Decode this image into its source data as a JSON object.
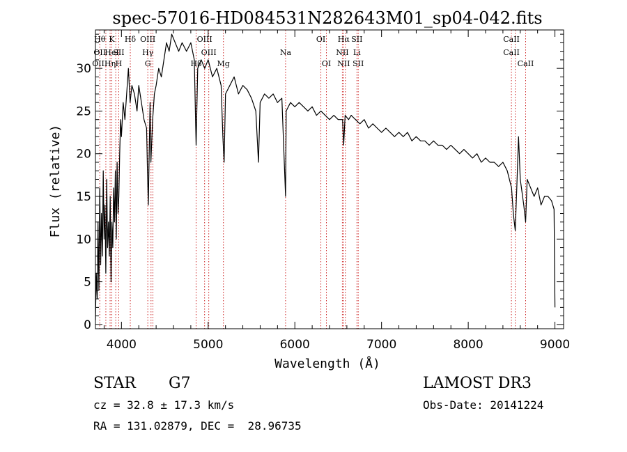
{
  "chart_data": {
    "type": "line",
    "title": "spec-57016-HD084531N282643M01_sp04-042.fits",
    "xlabel": "Wavelength (Å)",
    "ylabel": "Flux (relative)",
    "xlim": [
      3700,
      9100
    ],
    "ylim": [
      -0.5,
      34.5
    ],
    "xticks": [
      4000,
      5000,
      6000,
      7000,
      8000,
      9000
    ],
    "yticks": [
      0,
      5,
      10,
      15,
      20,
      25,
      30
    ],
    "grid": false,
    "series": [
      {
        "values": [
          [
            3700,
            0.5
          ],
          [
            3710,
            6
          ],
          [
            3720,
            3
          ],
          [
            3730,
            12
          ],
          [
            3740,
            4
          ],
          [
            3750,
            16
          ],
          [
            3760,
            7
          ],
          [
            3770,
            13
          ],
          [
            3780,
            8
          ],
          [
            3790,
            18
          ],
          [
            3800,
            10
          ],
          [
            3810,
            14
          ],
          [
            3820,
            6
          ],
          [
            3830,
            17
          ],
          [
            3840,
            9
          ],
          [
            3850,
            12
          ],
          [
            3860,
            8
          ],
          [
            3870,
            15
          ],
          [
            3880,
            5
          ],
          [
            3890,
            12
          ],
          [
            3900,
            9
          ],
          [
            3910,
            16
          ],
          [
            3920,
            12
          ],
          [
            3930,
            18
          ],
          [
            3940,
            10
          ],
          [
            3950,
            19
          ],
          [
            3960,
            13
          ],
          [
            3970,
            15
          ],
          [
            3980,
            20
          ],
          [
            3990,
            24
          ],
          [
            4000,
            22
          ],
          [
            4020,
            26
          ],
          [
            4040,
            24
          ],
          [
            4060,
            27
          ],
          [
            4080,
            30
          ],
          [
            4100,
            26
          ],
          [
            4120,
            28
          ],
          [
            4150,
            27
          ],
          [
            4180,
            25
          ],
          [
            4200,
            28
          ],
          [
            4230,
            26
          ],
          [
            4260,
            24
          ],
          [
            4290,
            23
          ],
          [
            4300,
            18
          ],
          [
            4310,
            14
          ],
          [
            4330,
            26
          ],
          [
            4340,
            19
          ],
          [
            4360,
            24
          ],
          [
            4380,
            27
          ],
          [
            4400,
            28
          ],
          [
            4430,
            30
          ],
          [
            4460,
            29
          ],
          [
            4490,
            31
          ],
          [
            4520,
            33
          ],
          [
            4550,
            32
          ],
          [
            4580,
            34
          ],
          [
            4620,
            33
          ],
          [
            4660,
            32
          ],
          [
            4700,
            33
          ],
          [
            4750,
            32
          ],
          [
            4800,
            33
          ],
          [
            4840,
            31
          ],
          [
            4861,
            21
          ],
          [
            4880,
            30
          ],
          [
            4920,
            31
          ],
          [
            4960,
            30
          ],
          [
            5000,
            31
          ],
          [
            5050,
            29
          ],
          [
            5100,
            30
          ],
          [
            5150,
            28
          ],
          [
            5170,
            22
          ],
          [
            5184,
            19
          ],
          [
            5200,
            27
          ],
          [
            5250,
            28
          ],
          [
            5300,
            29
          ],
          [
            5350,
            27
          ],
          [
            5400,
            28
          ],
          [
            5450,
            27.5
          ],
          [
            5500,
            26.5
          ],
          [
            5550,
            25
          ],
          [
            5580,
            19
          ],
          [
            5600,
            26
          ],
          [
            5650,
            27
          ],
          [
            5700,
            26.5
          ],
          [
            5750,
            27
          ],
          [
            5800,
            26
          ],
          [
            5850,
            26.5
          ],
          [
            5893,
            15
          ],
          [
            5900,
            25
          ],
          [
            5950,
            26
          ],
          [
            6000,
            25.5
          ],
          [
            6050,
            26
          ],
          [
            6100,
            25.5
          ],
          [
            6150,
            25
          ],
          [
            6200,
            25.5
          ],
          [
            6250,
            24.5
          ],
          [
            6300,
            25
          ],
          [
            6350,
            24.5
          ],
          [
            6400,
            24
          ],
          [
            6450,
            24.5
          ],
          [
            6500,
            24
          ],
          [
            6550,
            24
          ],
          [
            6563,
            21
          ],
          [
            6580,
            24.5
          ],
          [
            6620,
            24
          ],
          [
            6650,
            24.5
          ],
          [
            6700,
            24
          ],
          [
            6750,
            23.5
          ],
          [
            6800,
            24
          ],
          [
            6850,
            23
          ],
          [
            6900,
            23.5
          ],
          [
            6950,
            23
          ],
          [
            7000,
            22.5
          ],
          [
            7050,
            23
          ],
          [
            7100,
            22.5
          ],
          [
            7150,
            22
          ],
          [
            7200,
            22.5
          ],
          [
            7250,
            22
          ],
          [
            7300,
            22.5
          ],
          [
            7350,
            21.5
          ],
          [
            7400,
            22
          ],
          [
            7450,
            21.5
          ],
          [
            7500,
            21.5
          ],
          [
            7550,
            21
          ],
          [
            7600,
            21.5
          ],
          [
            7650,
            21
          ],
          [
            7700,
            21
          ],
          [
            7750,
            20.5
          ],
          [
            7800,
            21
          ],
          [
            7850,
            20.5
          ],
          [
            7900,
            20
          ],
          [
            7950,
            20.5
          ],
          [
            8000,
            20
          ],
          [
            8050,
            19.5
          ],
          [
            8100,
            20
          ],
          [
            8150,
            19
          ],
          [
            8200,
            19.5
          ],
          [
            8250,
            19
          ],
          [
            8300,
            19
          ],
          [
            8350,
            18.5
          ],
          [
            8400,
            19
          ],
          [
            8450,
            18
          ],
          [
            8500,
            16
          ],
          [
            8520,
            13
          ],
          [
            8542,
            11
          ],
          [
            8560,
            16
          ],
          [
            8580,
            22
          ],
          [
            8600,
            17
          ],
          [
            8640,
            14
          ],
          [
            8662,
            12
          ],
          [
            8680,
            17
          ],
          [
            8720,
            16
          ],
          [
            8760,
            15
          ],
          [
            8800,
            16
          ],
          [
            8840,
            14
          ],
          [
            8880,
            15
          ],
          [
            8920,
            15
          ],
          [
            8960,
            14.5
          ],
          [
            8990,
            13.5
          ],
          [
            9000,
            2
          ]
        ]
      }
    ],
    "lines": [
      {
        "wl": 3750,
        "labels": [
          "Hθ",
          "OII",
          "OIII"
        ]
      },
      {
        "wl": 3820,
        "labels": [
          "",
          "",
          ""
        ]
      },
      {
        "wl": 3869,
        "labels": [
          "",
          "",
          "Hη"
        ]
      },
      {
        "wl": 3889,
        "labels": [
          "K",
          "HeI",
          ""
        ]
      },
      {
        "wl": 3934,
        "labels": [
          "",
          "",
          ""
        ]
      },
      {
        "wl": 3969,
        "labels": [
          "",
          "SII",
          "H"
        ]
      },
      {
        "wl": 4102,
        "labels": [
          "Hδ",
          "",
          ""
        ]
      },
      {
        "wl": 4304,
        "labels": [
          "OIII",
          "Hγ",
          "G"
        ]
      },
      {
        "wl": 4341,
        "labels": [
          "",
          "",
          ""
        ]
      },
      {
        "wl": 4363,
        "labels": [
          "",
          "",
          ""
        ]
      },
      {
        "wl": 4861,
        "labels": [
          "",
          "",
          "Hβ"
        ]
      },
      {
        "wl": 4959,
        "labels": [
          "OIII",
          "",
          ""
        ]
      },
      {
        "wl": 5007,
        "labels": [
          "",
          "OIII",
          ""
        ]
      },
      {
        "wl": 5176,
        "labels": [
          "",
          "",
          "Mg"
        ]
      },
      {
        "wl": 5893,
        "labels": [
          "",
          "Na",
          ""
        ]
      },
      {
        "wl": 6300,
        "labels": [
          "OI",
          "",
          ""
        ]
      },
      {
        "wl": 6364,
        "labels": [
          "",
          "",
          "OI"
        ]
      },
      {
        "wl": 6548,
        "labels": [
          "",
          "NII",
          ""
        ]
      },
      {
        "wl": 6563,
        "labels": [
          "Hα",
          "",
          "NII"
        ]
      },
      {
        "wl": 6583,
        "labels": [
          "",
          "",
          ""
        ]
      },
      {
        "wl": 6716,
        "labels": [
          "SII",
          "Li",
          ""
        ]
      },
      {
        "wl": 6731,
        "labels": [
          "",
          "",
          "SII"
        ]
      },
      {
        "wl": 8498,
        "labels": [
          "CaII",
          "CaII",
          ""
        ]
      },
      {
        "wl": 8542,
        "labels": [
          "",
          "",
          ""
        ]
      },
      {
        "wl": 8662,
        "labels": [
          "",
          "",
          "CaII"
        ]
      }
    ]
  },
  "info": {
    "object_class": "STAR",
    "subclass": "G7",
    "cz": "cz = 32.8 ± 17.3 km/s",
    "coords": "RA = 131.02879, DEC =  28.96735",
    "survey": "LAMOST DR3",
    "obs_date": "Obs-Date: 20141224"
  },
  "colors": {
    "line_marker": "#cc2222",
    "spectrum": "#000000"
  }
}
